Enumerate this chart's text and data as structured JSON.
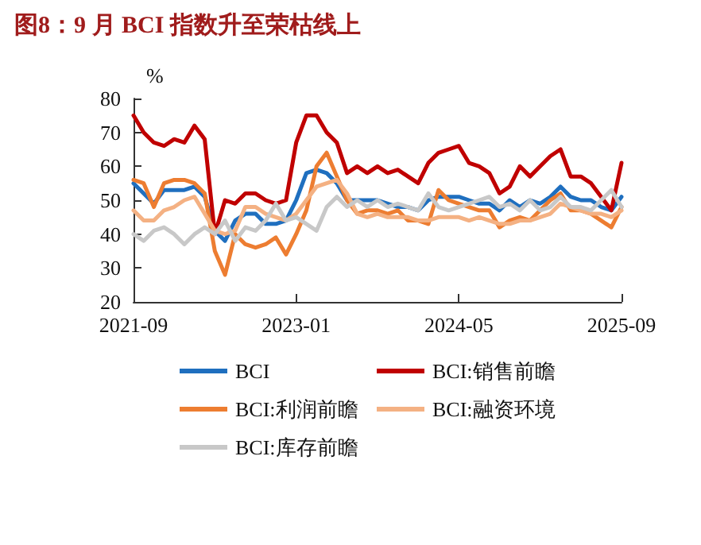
{
  "chart_data": {
    "type": "line",
    "title": "图8：9 月 BCI 指数升至荣枯线上",
    "ylabel": "%",
    "x": [
      "2021-09",
      "2021-10",
      "2021-11",
      "2021-12",
      "2022-01",
      "2022-02",
      "2022-03",
      "2022-04",
      "2022-05",
      "2022-06",
      "2022-07",
      "2022-08",
      "2022-09",
      "2022-10",
      "2022-11",
      "2022-12",
      "2023-01",
      "2023-02",
      "2023-03",
      "2023-04",
      "2023-05",
      "2023-06",
      "2023-07",
      "2023-08",
      "2023-09",
      "2023-10",
      "2023-11",
      "2023-12",
      "2024-01",
      "2024-02",
      "2024-03",
      "2024-04",
      "2024-05",
      "2024-06",
      "2024-07",
      "2024-08",
      "2024-09",
      "2024-10",
      "2024-11",
      "2024-12",
      "2025-01",
      "2025-02",
      "2025-03",
      "2025-04",
      "2025-05",
      "2025-06",
      "2025-07",
      "2025-08",
      "2025-09"
    ],
    "xlim": [
      "2021-09",
      "2025-09"
    ],
    "xticks": [
      "2021-09",
      "2023-01",
      "2024-05",
      "2025-09"
    ],
    "ylim": [
      20,
      80
    ],
    "yticks": [
      20,
      30,
      40,
      50,
      60,
      70,
      80
    ],
    "grid": false,
    "legend": "bottom",
    "marker": "none",
    "line_style": "solid",
    "series": [
      {
        "name": "BCI",
        "color": "#1f6fbf",
        "values": [
          55,
          52,
          49,
          53,
          53,
          53,
          54,
          51,
          41,
          38,
          44,
          46,
          46,
          43,
          43,
          44,
          50,
          58,
          59,
          58,
          55,
          50,
          50,
          50,
          50,
          49,
          48,
          48,
          47,
          50,
          51,
          51,
          51,
          50,
          49,
          49,
          47,
          50,
          48,
          50,
          49,
          51,
          54,
          51,
          50,
          50,
          48,
          47,
          51
        ]
      },
      {
        "name": "BCI:销售前瞻",
        "color": "#c00000",
        "values": [
          75,
          70,
          67,
          66,
          68,
          67,
          72,
          68,
          40,
          50,
          49,
          52,
          52,
          50,
          49,
          50,
          67,
          75,
          75,
          70,
          67,
          58,
          60,
          58,
          60,
          58,
          59,
          57,
          55,
          61,
          64,
          65,
          66,
          61,
          60,
          58,
          52,
          54,
          60,
          57,
          60,
          63,
          65,
          57,
          57,
          55,
          51,
          47,
          61
        ]
      },
      {
        "name": "BCI:利润前瞻",
        "color": "#ed7d31",
        "values": [
          56,
          55,
          48,
          55,
          56,
          56,
          55,
          52,
          35,
          28,
          40,
          37,
          36,
          37,
          39,
          34,
          40,
          47,
          60,
          64,
          57,
          50,
          46,
          47,
          47,
          46,
          47,
          44,
          44,
          43,
          53,
          50,
          49,
          48,
          47,
          47,
          42,
          44,
          45,
          44,
          47,
          50,
          52,
          47,
          47,
          46,
          44,
          42,
          48
        ]
      },
      {
        "name": "BCI:融资环境",
        "color": "#f4b183",
        "values": [
          47,
          44,
          44,
          47,
          48,
          50,
          51,
          46,
          41,
          40,
          41,
          48,
          48,
          46,
          45,
          44,
          46,
          50,
          54,
          55,
          56,
          52,
          46,
          45,
          46,
          45,
          45,
          45,
          44,
          44,
          45,
          45,
          45,
          44,
          45,
          44,
          43,
          43,
          44,
          44,
          45,
          46,
          49,
          48,
          47,
          46,
          46,
          45,
          47
        ]
      },
      {
        "name": "BCI:库存前瞻",
        "color": "#c8c8c8",
        "values": [
          40,
          38,
          41,
          42,
          40,
          37,
          40,
          42,
          40,
          44,
          38,
          42,
          41,
          44,
          49,
          44,
          45,
          43,
          41,
          48,
          51,
          48,
          50,
          48,
          50,
          48,
          49,
          48,
          47,
          52,
          48,
          47,
          48,
          49,
          50,
          51,
          48,
          49,
          47,
          50,
          47,
          48,
          51,
          48,
          48,
          47,
          50,
          53,
          48
        ]
      }
    ]
  }
}
